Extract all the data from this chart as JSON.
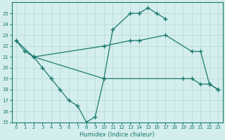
{
  "line1_x": [
    0,
    1,
    2,
    3,
    4,
    5,
    6,
    7,
    8,
    9,
    10,
    11,
    13,
    14,
    15,
    16,
    17
  ],
  "line1_y": [
    22.5,
    21.5,
    21,
    20,
    19,
    18,
    17,
    16.5,
    15,
    15.5,
    19,
    23.5,
    25,
    25,
    25.5,
    25,
    24.5
  ],
  "line2_x": [
    0,
    2,
    10,
    13,
    14,
    17,
    20,
    21,
    22,
    23
  ],
  "line2_y": [
    22.5,
    21,
    22,
    22.5,
    22.5,
    23,
    21.5,
    21.5,
    18.5,
    18
  ],
  "line3_x": [
    2,
    10,
    19,
    20,
    21,
    22,
    23
  ],
  "line3_y": [
    21,
    19,
    19,
    19,
    18.5,
    18.5,
    18
  ],
  "color": "#1a7a6e",
  "bg_color": "#d4eeed",
  "grid_color": "#b8dbd8",
  "xlabel": "Humidex (Indice chaleur)",
  "xlim": [
    -0.5,
    23.5
  ],
  "ylim": [
    15,
    26
  ],
  "yticks": [
    15,
    16,
    17,
    18,
    19,
    20,
    21,
    22,
    23,
    24,
    25
  ],
  "xticks": [
    0,
    1,
    2,
    3,
    4,
    5,
    6,
    7,
    8,
    9,
    10,
    11,
    12,
    13,
    14,
    15,
    16,
    17,
    18,
    19,
    20,
    21,
    22,
    23
  ],
  "marker": "+",
  "markersize": 4,
  "linewidth": 0.9
}
